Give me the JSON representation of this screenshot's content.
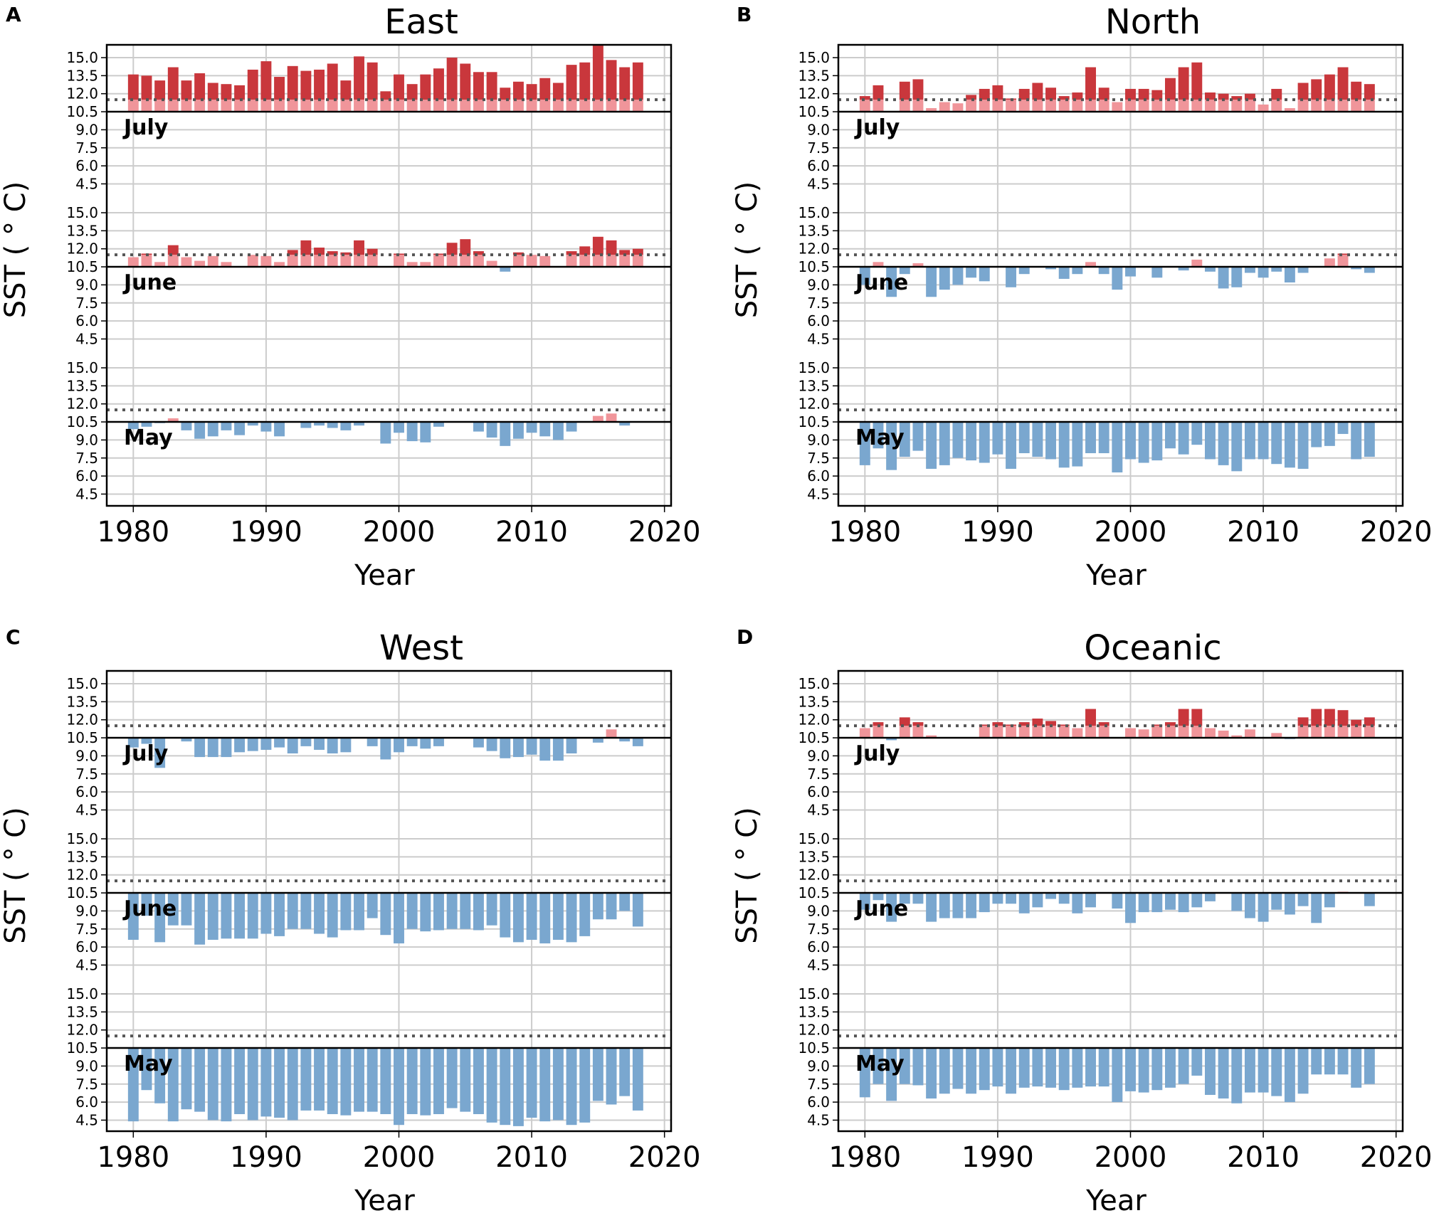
{
  "figure": {
    "x_label": "Year",
    "y_label": "SST ( ° C)",
    "reference_line": 11.5,
    "baseline": 10.5,
    "colors": {
      "warm_strong": "#c9373c",
      "warm_light": "#f0959a",
      "cool": "#7aa7cf",
      "grid": "#cccccc",
      "reference": "#555555"
    }
  },
  "chart_data": [
    {
      "type": "bar",
      "panel": "A",
      "title": "East",
      "xlabel": "Year",
      "ylabel": "SST ( ° C)",
      "x": [
        1980,
        1981,
        1982,
        1983,
        1984,
        1985,
        1986,
        1987,
        1988,
        1989,
        1990,
        1991,
        1992,
        1993,
        1994,
        1995,
        1996,
        1997,
        1998,
        1999,
        2000,
        2001,
        2002,
        2003,
        2004,
        2005,
        2006,
        2007,
        2008,
        2009,
        2010,
        2011,
        2012,
        2013,
        2014,
        2015,
        2016,
        2017,
        2018
      ],
      "xlim": [
        1978,
        2020.5
      ],
      "xticks": [
        "1980",
        "1990",
        "2000",
        "2010",
        "2020"
      ],
      "yticks": [
        "15.0",
        "13.5",
        "12.0",
        "10.5",
        "9.0",
        "7.5",
        "6.0",
        "4.5"
      ],
      "ylim": [
        3.5,
        16
      ],
      "series": [
        {
          "name": "July",
          "values": [
            13.6,
            13.5,
            13.1,
            14.2,
            13.1,
            13.7,
            12.9,
            12.8,
            12.7,
            14.0,
            14.7,
            13.4,
            14.3,
            13.9,
            14.0,
            14.5,
            13.1,
            15.1,
            14.6,
            12.2,
            13.6,
            12.8,
            13.6,
            14.1,
            15.0,
            14.5,
            13.8,
            13.8,
            12.5,
            13.0,
            12.8,
            13.3,
            12.9,
            14.4,
            14.6,
            16.0,
            14.8,
            14.2,
            14.6
          ]
        },
        {
          "name": "June",
          "values": [
            11.3,
            11.6,
            10.9,
            12.3,
            11.3,
            11.0,
            11.4,
            10.9,
            10.5,
            11.5,
            11.4,
            10.9,
            11.9,
            12.7,
            12.1,
            11.8,
            11.7,
            12.7,
            12.0,
            10.5,
            11.6,
            10.9,
            10.9,
            11.6,
            12.5,
            12.8,
            11.8,
            11.0,
            10.1,
            11.7,
            11.5,
            11.4,
            10.5,
            11.8,
            12.2,
            13.0,
            12.7,
            11.9,
            12.0
          ]
        },
        {
          "name": "May",
          "values": [
            9.9,
            10.1,
            10.4,
            10.8,
            9.8,
            9.1,
            9.3,
            9.8,
            9.4,
            10.2,
            9.7,
            9.3,
            10.5,
            10.0,
            10.2,
            10.0,
            9.8,
            10.2,
            10.5,
            8.7,
            9.6,
            8.9,
            8.8,
            10.1,
            10.5,
            10.5,
            9.7,
            9.2,
            8.5,
            9.1,
            9.6,
            9.3,
            9.0,
            9.7,
            10.5,
            11.0,
            11.2,
            10.2,
            10.5
          ]
        }
      ]
    },
    {
      "type": "bar",
      "panel": "B",
      "title": "North",
      "xlabel": "Year",
      "ylabel": "SST ( ° C)",
      "x": [
        1980,
        1981,
        1982,
        1983,
        1984,
        1985,
        1986,
        1987,
        1988,
        1989,
        1990,
        1991,
        1992,
        1993,
        1994,
        1995,
        1996,
        1997,
        1998,
        1999,
        2000,
        2001,
        2002,
        2003,
        2004,
        2005,
        2006,
        2007,
        2008,
        2009,
        2010,
        2011,
        2012,
        2013,
        2014,
        2015,
        2016,
        2017,
        2018
      ],
      "xlim": [
        1978,
        2020.5
      ],
      "xticks": [
        "1980",
        "1990",
        "2000",
        "2010",
        "2020"
      ],
      "yticks": [
        "15.0",
        "13.5",
        "12.0",
        "10.5",
        "9.0",
        "7.5",
        "6.0",
        "4.5"
      ],
      "ylim": [
        3.5,
        16
      ],
      "series": [
        {
          "name": "July",
          "values": [
            11.8,
            12.7,
            10.5,
            13.0,
            13.2,
            10.8,
            11.3,
            11.2,
            11.9,
            12.4,
            12.7,
            11.6,
            12.4,
            12.9,
            12.5,
            11.8,
            12.1,
            14.2,
            12.5,
            11.3,
            12.4,
            12.4,
            12.3,
            13.3,
            14.2,
            14.6,
            12.1,
            12.0,
            11.8,
            12.0,
            11.1,
            12.4,
            10.8,
            12.9,
            13.2,
            13.6,
            14.2,
            13.0,
            12.8
          ]
        },
        {
          "name": "June",
          "values": [
            9.0,
            10.9,
            8.0,
            9.9,
            10.8,
            8.0,
            8.6,
            9.0,
            9.6,
            9.3,
            10.5,
            8.8,
            9.9,
            10.5,
            10.3,
            9.5,
            9.9,
            10.9,
            9.9,
            8.6,
            9.7,
            10.5,
            9.6,
            10.5,
            10.2,
            11.1,
            10.1,
            8.7,
            8.8,
            10.0,
            9.6,
            10.1,
            9.2,
            10.0,
            10.5,
            11.2,
            11.6,
            10.3,
            10.0
          ]
        },
        {
          "name": "May",
          "values": [
            6.9,
            8.3,
            6.5,
            7.6,
            8.1,
            6.6,
            6.9,
            7.5,
            7.3,
            7.1,
            7.8,
            6.6,
            7.9,
            7.6,
            7.4,
            6.7,
            6.8,
            7.9,
            7.9,
            6.3,
            7.4,
            7.1,
            7.3,
            8.3,
            7.8,
            8.6,
            7.4,
            6.9,
            6.4,
            7.4,
            7.4,
            7.0,
            6.7,
            6.6,
            8.4,
            8.5,
            9.5,
            7.4,
            7.6
          ]
        }
      ]
    },
    {
      "type": "bar",
      "panel": "C",
      "title": "West",
      "xlabel": "Year",
      "ylabel": "SST ( ° C)",
      "x": [
        1980,
        1981,
        1982,
        1983,
        1984,
        1985,
        1986,
        1987,
        1988,
        1989,
        1990,
        1991,
        1992,
        1993,
        1994,
        1995,
        1996,
        1997,
        1998,
        1999,
        2000,
        2001,
        2002,
        2003,
        2004,
        2005,
        2006,
        2007,
        2008,
        2009,
        2010,
        2011,
        2012,
        2013,
        2014,
        2015,
        2016,
        2017,
        2018
      ],
      "xlim": [
        1978,
        2020.5
      ],
      "xticks": [
        "1980",
        "1990",
        "2000",
        "2010",
        "2020"
      ],
      "yticks": [
        "15.0",
        "13.5",
        "12.0",
        "10.5",
        "9.0",
        "7.5",
        "6.0",
        "4.5"
      ],
      "ylim": [
        3.5,
        16
      ],
      "series": [
        {
          "name": "July",
          "values": [
            9.7,
            10.0,
            8.0,
            10.5,
            10.2,
            8.9,
            8.9,
            8.9,
            9.3,
            9.4,
            9.5,
            9.7,
            9.2,
            9.8,
            9.5,
            9.2,
            9.3,
            10.5,
            9.8,
            8.7,
            9.3,
            9.8,
            9.6,
            9.8,
            10.5,
            10.5,
            9.7,
            9.4,
            8.8,
            8.9,
            9.1,
            8.6,
            8.6,
            9.2,
            10.5,
            10.1,
            11.2,
            10.2,
            9.8
          ]
        },
        {
          "name": "June",
          "values": [
            6.6,
            8.6,
            6.4,
            7.8,
            7.8,
            6.2,
            6.6,
            6.7,
            6.7,
            6.7,
            7.1,
            6.9,
            7.5,
            7.5,
            7.1,
            6.8,
            7.4,
            7.4,
            8.4,
            7.0,
            6.3,
            7.5,
            7.3,
            7.4,
            7.5,
            7.5,
            7.4,
            7.8,
            6.8,
            6.4,
            6.6,
            6.3,
            6.6,
            6.4,
            6.9,
            8.3,
            8.3,
            9.0,
            7.7
          ]
        },
        {
          "name": "May",
          "values": [
            4.4,
            7.0,
            5.9,
            4.4,
            5.4,
            5.2,
            4.5,
            4.4,
            5.0,
            4.5,
            4.8,
            4.7,
            4.5,
            5.3,
            5.3,
            5.0,
            4.9,
            5.2,
            5.2,
            5.0,
            4.1,
            5.0,
            4.9,
            5.0,
            5.5,
            5.2,
            5.0,
            4.3,
            4.1,
            4.0,
            4.7,
            4.4,
            4.5,
            4.1,
            4.3,
            6.1,
            5.8,
            6.5,
            5.3
          ]
        }
      ]
    },
    {
      "type": "bar",
      "panel": "D",
      "title": "Oceanic",
      "xlabel": "Year",
      "ylabel": "SST ( ° C)",
      "x": [
        1980,
        1981,
        1982,
        1983,
        1984,
        1985,
        1986,
        1987,
        1988,
        1989,
        1990,
        1991,
        1992,
        1993,
        1994,
        1995,
        1996,
        1997,
        1998,
        1999,
        2000,
        2001,
        2002,
        2003,
        2004,
        2005,
        2006,
        2007,
        2008,
        2009,
        2010,
        2011,
        2012,
        2013,
        2014,
        2015,
        2016,
        2017,
        2018
      ],
      "xlim": [
        1978,
        2020.5
      ],
      "xticks": [
        "1980",
        "1990",
        "2000",
        "2010",
        "2020"
      ],
      "yticks": [
        "15.0",
        "13.5",
        "12.0",
        "10.5",
        "9.0",
        "7.5",
        "6.0",
        "4.5"
      ],
      "ylim": [
        3.5,
        16
      ],
      "series": [
        {
          "name": "July",
          "values": [
            11.3,
            11.8,
            10.3,
            12.2,
            11.8,
            10.7,
            10.5,
            10.5,
            10.5,
            11.6,
            11.8,
            11.6,
            11.8,
            12.1,
            11.9,
            11.6,
            11.3,
            12.9,
            11.8,
            10.5,
            11.3,
            11.2,
            11.6,
            11.8,
            12.9,
            12.9,
            11.3,
            11.1,
            10.7,
            11.2,
            10.5,
            10.9,
            10.4,
            12.2,
            12.9,
            12.9,
            12.8,
            12.0,
            12.2
          ]
        },
        {
          "name": "June",
          "values": [
            9.1,
            9.9,
            8.1,
            9.6,
            9.6,
            8.1,
            8.4,
            8.4,
            8.4,
            8.9,
            9.6,
            9.6,
            8.8,
            9.3,
            10.0,
            9.6,
            8.8,
            9.3,
            10.5,
            9.2,
            8.0,
            8.9,
            8.9,
            9.1,
            8.9,
            9.3,
            9.8,
            10.5,
            9.0,
            8.4,
            8.1,
            9.1,
            8.7,
            9.4,
            8.0,
            9.3,
            10.6,
            10.5,
            9.4
          ]
        },
        {
          "name": "May",
          "values": [
            6.4,
            7.5,
            6.1,
            7.5,
            7.4,
            6.3,
            6.7,
            7.1,
            6.7,
            7.0,
            7.3,
            6.7,
            7.2,
            7.3,
            7.2,
            7.0,
            7.2,
            7.3,
            7.3,
            6.0,
            6.9,
            6.8,
            7.0,
            7.2,
            7.5,
            8.2,
            6.6,
            6.3,
            5.9,
            6.8,
            6.8,
            6.5,
            6.0,
            6.7,
            8.3,
            8.3,
            8.3,
            7.2,
            7.5
          ]
        }
      ]
    }
  ]
}
